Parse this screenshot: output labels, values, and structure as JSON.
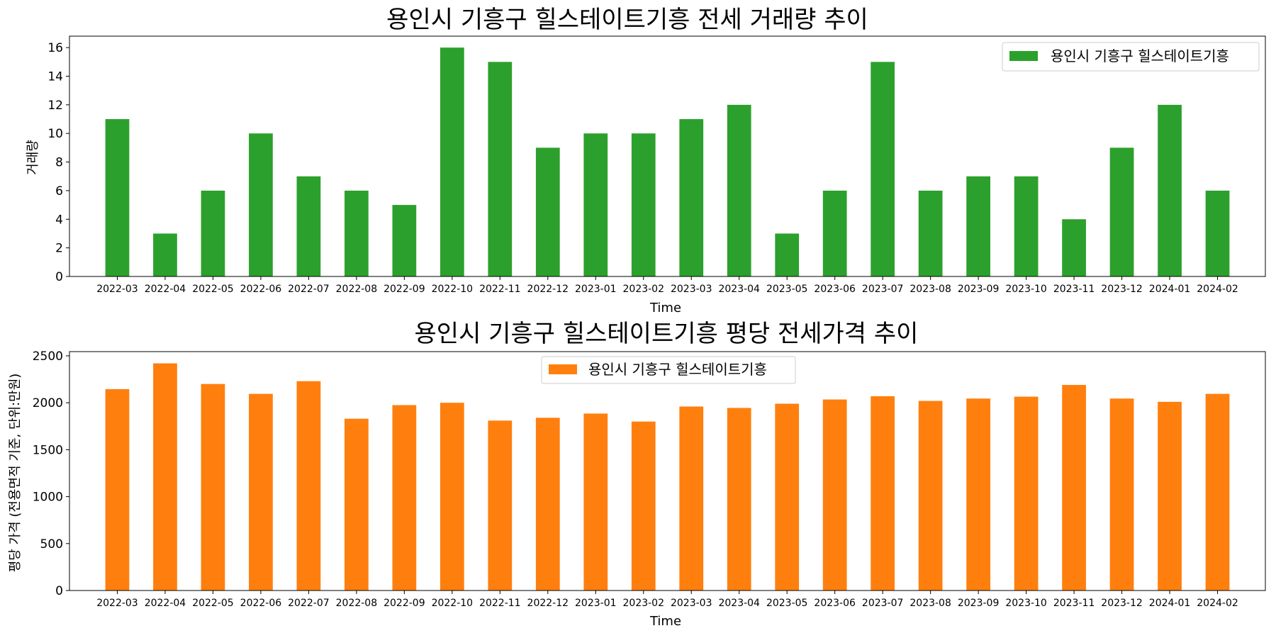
{
  "colors": {
    "volume": "#2ca02c",
    "price": "#ff7f0e"
  },
  "categories": [
    "2022-03",
    "2022-04",
    "2022-05",
    "2022-06",
    "2022-07",
    "2022-08",
    "2022-09",
    "2022-10",
    "2022-11",
    "2022-12",
    "2023-01",
    "2023-02",
    "2023-03",
    "2023-04",
    "2023-05",
    "2023-06",
    "2023-07",
    "2023-08",
    "2023-09",
    "2023-10",
    "2023-11",
    "2023-12",
    "2024-01",
    "2024-02"
  ],
  "chart_data": [
    {
      "type": "bar",
      "title": "용인시 기흥구 힐스테이트기흥 전세 거래량 추이",
      "xlabel": "Time",
      "ylabel": "거래량",
      "ylim": [
        0,
        16.8
      ],
      "yticks": [
        0,
        2,
        4,
        6,
        8,
        10,
        12,
        14,
        16
      ],
      "legend_position": "upper right",
      "color": "#2ca02c",
      "categories": [
        "2022-03",
        "2022-04",
        "2022-05",
        "2022-06",
        "2022-07",
        "2022-08",
        "2022-09",
        "2022-10",
        "2022-11",
        "2022-12",
        "2023-01",
        "2023-02",
        "2023-03",
        "2023-04",
        "2023-05",
        "2023-06",
        "2023-07",
        "2023-08",
        "2023-09",
        "2023-10",
        "2023-11",
        "2023-12",
        "2024-01",
        "2024-02"
      ],
      "series": [
        {
          "name": "용인시 기흥구 힐스테이트기흥",
          "values": [
            11,
            3,
            6,
            10,
            7,
            6,
            5,
            16,
            15,
            9,
            10,
            10,
            11,
            12,
            3,
            6,
            15,
            6,
            7,
            7,
            4,
            9,
            12,
            6
          ]
        }
      ]
    },
    {
      "type": "bar",
      "title": "용인시 기흥구 힐스테이트기흥 평당 전세가격 추이",
      "xlabel": "Time",
      "ylabel": "평당 가격 (전용면적 기준, 단위:만원)",
      "ylim": [
        0,
        2545
      ],
      "yticks": [
        0,
        500,
        1000,
        1500,
        2000,
        2500
      ],
      "legend_position": "upper center",
      "color": "#ff7f0e",
      "categories": [
        "2022-03",
        "2022-04",
        "2022-05",
        "2022-06",
        "2022-07",
        "2022-08",
        "2022-09",
        "2022-10",
        "2022-11",
        "2022-12",
        "2023-01",
        "2023-02",
        "2023-03",
        "2023-04",
        "2023-05",
        "2023-06",
        "2023-07",
        "2023-08",
        "2023-09",
        "2023-10",
        "2023-11",
        "2023-12",
        "2024-01",
        "2024-02"
      ],
      "series": [
        {
          "name": "용인시 기흥구 힐스테이트기흥",
          "values": [
            2145,
            2420,
            2200,
            2095,
            2230,
            1830,
            1975,
            2000,
            1810,
            1840,
            1885,
            1800,
            1960,
            1945,
            1990,
            2035,
            2070,
            2020,
            2045,
            2065,
            2190,
            2045,
            2010,
            2095
          ]
        }
      ]
    }
  ]
}
